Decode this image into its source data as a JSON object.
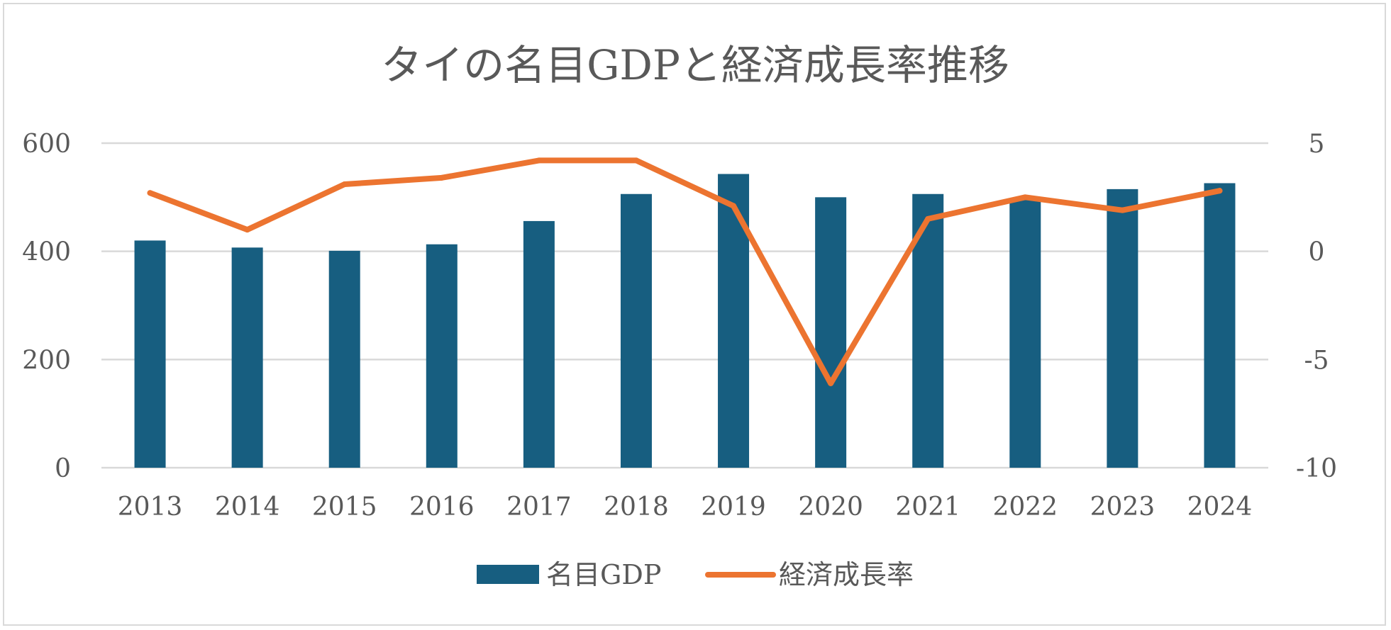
{
  "chart_data": {
    "type": "bar",
    "title": "タイの名目GDPと経済成長率推移",
    "categories": [
      "2013",
      "2014",
      "2015",
      "2016",
      "2017",
      "2018",
      "2019",
      "2020",
      "2021",
      "2022",
      "2023",
      "2024"
    ],
    "series": [
      {
        "name": "名目GDP",
        "type": "bar",
        "axis": "left",
        "color": "#175e80",
        "values": [
          420,
          407,
          401,
          413,
          456,
          506,
          543,
          500,
          506,
          495,
          515,
          526
        ]
      },
      {
        "name": "経済成長率",
        "type": "line",
        "axis": "right",
        "color": "#ec7430",
        "values": [
          2.7,
          1.0,
          3.1,
          3.4,
          4.2,
          4.2,
          2.1,
          -6.1,
          1.5,
          2.5,
          1.9,
          2.8
        ]
      }
    ],
    "y_left": {
      "min": 0,
      "max": 600,
      "step": 200,
      "ticks": [
        "0",
        "200",
        "400",
        "600"
      ]
    },
    "y_right": {
      "min": -10,
      "max": 5,
      "step": 5,
      "ticks": [
        "-10",
        "-5",
        "0",
        "5"
      ]
    },
    "grid": true,
    "legend_position": "bottom"
  }
}
